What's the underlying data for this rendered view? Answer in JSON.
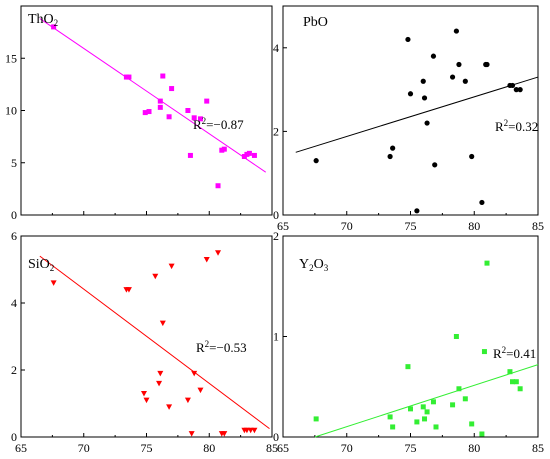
{
  "chart_data": [
    {
      "type": "scatter",
      "title_base": "ThO",
      "title_sub": "2",
      "color": "#ff00ff",
      "marker": "square",
      "xlim": [
        65,
        85
      ],
      "ylim": [
        0,
        20
      ],
      "xticks": [
        "65",
        "70",
        "75",
        "80",
        "85"
      ],
      "yticks": [
        "0",
        "5",
        "10",
        "15"
      ],
      "x_labels_shown": false,
      "r2_base": "R",
      "r2_sup": "2",
      "r2_value": "=−0.87",
      "fit": {
        "x": [
          66.5,
          84.5
        ],
        "y": [
          18.8,
          4.1
        ]
      },
      "points": [
        {
          "x": 67.6,
          "y": 18.0
        },
        {
          "x": 73.4,
          "y": 13.2
        },
        {
          "x": 73.6,
          "y": 13.2
        },
        {
          "x": 74.9,
          "y": 9.8
        },
        {
          "x": 75.2,
          "y": 9.9
        },
        {
          "x": 76.1,
          "y": 10.3
        },
        {
          "x": 76.1,
          "y": 10.9
        },
        {
          "x": 76.3,
          "y": 13.3
        },
        {
          "x": 76.8,
          "y": 9.4
        },
        {
          "x": 77.0,
          "y": 12.1
        },
        {
          "x": 78.3,
          "y": 10.0
        },
        {
          "x": 78.5,
          "y": 5.7
        },
        {
          "x": 78.8,
          "y": 9.3
        },
        {
          "x": 79.3,
          "y": 9.2
        },
        {
          "x": 79.8,
          "y": 10.9
        },
        {
          "x": 80.7,
          "y": 2.8
        },
        {
          "x": 81.0,
          "y": 6.2
        },
        {
          "x": 81.2,
          "y": 6.3
        },
        {
          "x": 82.8,
          "y": 5.6
        },
        {
          "x": 83.0,
          "y": 5.8
        },
        {
          "x": 83.2,
          "y": 5.9
        },
        {
          "x": 83.6,
          "y": 5.7
        }
      ]
    },
    {
      "type": "scatter",
      "title_base": "PbO",
      "title_sub": "",
      "color": "#000000",
      "marker": "circle",
      "xlim": [
        65,
        85
      ],
      "ylim": [
        0,
        5
      ],
      "xticks": [
        "65",
        "70",
        "75",
        "80",
        "85"
      ],
      "yticks": [
        "0",
        "2",
        "4"
      ],
      "x_labels_shown": true,
      "r2_base": "R",
      "r2_sup": "2",
      "r2_value": "=0.32",
      "fit": {
        "x": [
          66.0,
          85.0
        ],
        "y": [
          1.5,
          3.3
        ]
      },
      "points": [
        {
          "x": 67.6,
          "y": 1.3
        },
        {
          "x": 73.4,
          "y": 1.4
        },
        {
          "x": 73.6,
          "y": 1.6
        },
        {
          "x": 74.8,
          "y": 4.2
        },
        {
          "x": 75.0,
          "y": 2.9
        },
        {
          "x": 75.5,
          "y": 0.1
        },
        {
          "x": 76.0,
          "y": 3.2
        },
        {
          "x": 76.1,
          "y": 2.8
        },
        {
          "x": 76.3,
          "y": 2.2
        },
        {
          "x": 76.8,
          "y": 3.8
        },
        {
          "x": 76.9,
          "y": 1.2
        },
        {
          "x": 78.3,
          "y": 3.3
        },
        {
          "x": 78.6,
          "y": 4.4
        },
        {
          "x": 78.8,
          "y": 3.6
        },
        {
          "x": 79.3,
          "y": 3.2
        },
        {
          "x": 79.8,
          "y": 1.4
        },
        {
          "x": 80.6,
          "y": 0.3
        },
        {
          "x": 80.9,
          "y": 3.6
        },
        {
          "x": 81.0,
          "y": 3.6
        },
        {
          "x": 82.8,
          "y": 3.1
        },
        {
          "x": 83.0,
          "y": 3.1
        },
        {
          "x": 83.3,
          "y": 3.0
        },
        {
          "x": 83.6,
          "y": 3.0
        }
      ]
    },
    {
      "type": "scatter",
      "title_base": "SiO",
      "title_sub": "2",
      "color": "#ff0000",
      "marker": "triangle-down",
      "xlim": [
        65,
        85
      ],
      "ylim": [
        0,
        6
      ],
      "xticks": [
        "65",
        "70",
        "75",
        "80",
        "85"
      ],
      "yticks": [
        "0",
        "2",
        "4",
        "6"
      ],
      "x_labels_shown": true,
      "r2_base": "R",
      "r2_sup": "2",
      "r2_value": "=−0.53",
      "fit": {
        "x": [
          66.5,
          84.8
        ],
        "y": [
          5.4,
          0.25
        ]
      },
      "points": [
        {
          "x": 67.6,
          "y": 4.6
        },
        {
          "x": 73.4,
          "y": 4.4
        },
        {
          "x": 73.6,
          "y": 4.4
        },
        {
          "x": 74.8,
          "y": 1.3
        },
        {
          "x": 75.0,
          "y": 1.1
        },
        {
          "x": 75.7,
          "y": 4.8
        },
        {
          "x": 76.0,
          "y": 1.6
        },
        {
          "x": 76.1,
          "y": 1.9
        },
        {
          "x": 76.3,
          "y": 3.4
        },
        {
          "x": 76.8,
          "y": 0.9
        },
        {
          "x": 77.0,
          "y": 5.1
        },
        {
          "x": 78.3,
          "y": 1.1
        },
        {
          "x": 78.6,
          "y": 0.1
        },
        {
          "x": 78.8,
          "y": 1.9
        },
        {
          "x": 79.3,
          "y": 1.4
        },
        {
          "x": 79.8,
          "y": 5.3
        },
        {
          "x": 80.7,
          "y": 5.5
        },
        {
          "x": 81.0,
          "y": 0.1
        },
        {
          "x": 81.2,
          "y": 0.1
        },
        {
          "x": 82.8,
          "y": 0.2
        },
        {
          "x": 83.0,
          "y": 0.2
        },
        {
          "x": 83.3,
          "y": 0.2
        },
        {
          "x": 83.6,
          "y": 0.2
        }
      ]
    },
    {
      "type": "scatter",
      "title_base": "Y",
      "title_mid_sub": "2",
      "title_rest": "O",
      "title_sub": "3",
      "color": "#33ee33",
      "marker": "square",
      "xlim": [
        65,
        85
      ],
      "ylim": [
        0,
        2
      ],
      "xticks": [
        "65",
        "70",
        "75",
        "80",
        "85"
      ],
      "yticks": [
        "0",
        "1",
        "2"
      ],
      "x_labels_shown": true,
      "r2_base": "R",
      "r2_sup": "2",
      "r2_value": "=0.41",
      "fit": {
        "x": [
          67.5,
          85.0
        ],
        "y": [
          0.0,
          0.72
        ]
      },
      "points": [
        {
          "x": 67.6,
          "y": 0.18
        },
        {
          "x": 73.4,
          "y": 0.2
        },
        {
          "x": 73.6,
          "y": 0.1
        },
        {
          "x": 74.8,
          "y": 0.7
        },
        {
          "x": 75.0,
          "y": 0.28
        },
        {
          "x": 75.5,
          "y": 0.15
        },
        {
          "x": 76.0,
          "y": 0.3
        },
        {
          "x": 76.1,
          "y": 0.18
        },
        {
          "x": 76.3,
          "y": 0.25
        },
        {
          "x": 76.8,
          "y": 0.35
        },
        {
          "x": 77.0,
          "y": 0.1
        },
        {
          "x": 78.3,
          "y": 0.32
        },
        {
          "x": 78.6,
          "y": 1.0
        },
        {
          "x": 78.8,
          "y": 0.48
        },
        {
          "x": 79.3,
          "y": 0.38
        },
        {
          "x": 79.8,
          "y": 0.13
        },
        {
          "x": 80.6,
          "y": 0.03
        },
        {
          "x": 80.8,
          "y": 0.85
        },
        {
          "x": 81.0,
          "y": 1.73
        },
        {
          "x": 82.8,
          "y": 0.65
        },
        {
          "x": 83.0,
          "y": 0.55
        },
        {
          "x": 83.3,
          "y": 0.55
        },
        {
          "x": 83.6,
          "y": 0.48
        }
      ]
    }
  ]
}
